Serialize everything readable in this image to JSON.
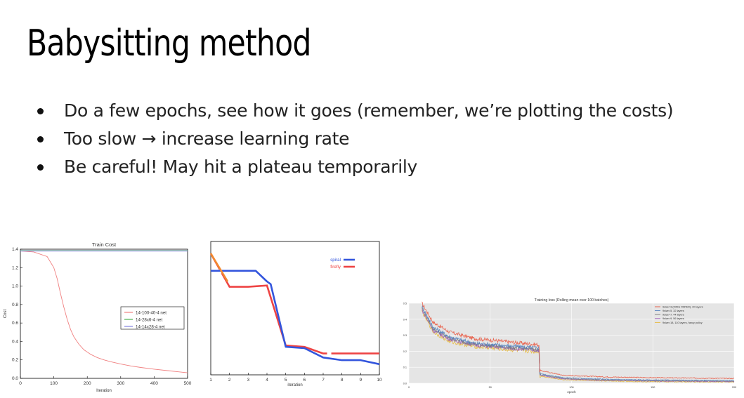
{
  "slide": {
    "title": "Babysitting method",
    "bullets": [
      "Do a few epochs, see how it goes (remember, we’re plotting the costs)",
      "Too slow → increase learning rate",
      "Be careful! May hit a plateau temporarily"
    ]
  },
  "chart_data": [
    {
      "type": "line",
      "title": "Train Cost",
      "xlabel": "Iteration",
      "ylabel": "Cost",
      "xlim": [
        0,
        500
      ],
      "ylim": [
        0,
        1.4
      ],
      "xticks": [
        0,
        100,
        200,
        300,
        400,
        500
      ],
      "yticks": [
        0.0,
        0.2,
        0.4,
        0.6,
        0.8,
        1.0,
        1.2,
        1.4
      ],
      "legend_position": "right",
      "series": [
        {
          "name": "14-100-40-4 net",
          "color": "#f08080",
          "x": [
            0,
            40,
            80,
            100,
            110,
            120,
            130,
            140,
            150,
            160,
            175,
            190,
            210,
            230,
            250,
            270,
            300,
            330,
            360,
            400,
            450,
            500
          ],
          "y": [
            1.38,
            1.37,
            1.32,
            1.2,
            1.08,
            0.92,
            0.77,
            0.64,
            0.53,
            0.45,
            0.37,
            0.31,
            0.26,
            0.225,
            0.2,
            0.18,
            0.155,
            0.135,
            0.118,
            0.1,
            0.08,
            0.06
          ]
        },
        {
          "name": "14-28x6-4 net",
          "color": "#4caf50",
          "x": [
            0,
            500
          ],
          "y": [
            1.385,
            1.385
          ]
        },
        {
          "name": "14-14x28-4 net",
          "color": "#8080e0",
          "x": [
            0,
            500
          ],
          "y": [
            1.38,
            1.38
          ]
        }
      ]
    },
    {
      "type": "line",
      "title": "",
      "xlabel": "iteration",
      "ylabel": "",
      "xlim": [
        1,
        10
      ],
      "ylim": [
        0,
        10
      ],
      "xticks": [
        1,
        2,
        3,
        4,
        5,
        6,
        7,
        8,
        9,
        10
      ],
      "legend_position": "top-right",
      "series": [
        {
          "name": "spiral",
          "color": "#3355dd",
          "x": [
            1,
            2,
            3,
            3.4,
            4,
            4.2,
            5,
            6,
            7,
            8,
            9,
            10
          ],
          "y": [
            7.8,
            7.8,
            7.8,
            7.8,
            7.0,
            6.8,
            2.1,
            2.0,
            1.3,
            1.1,
            1.1,
            0.8
          ]
        },
        {
          "name": "firefly",
          "color": "#ee4444",
          "x": [
            1,
            2,
            3,
            4,
            5,
            6,
            7,
            8,
            9,
            10
          ],
          "y": [
            9.1,
            6.6,
            6.6,
            6.7,
            2.2,
            2.1,
            1.6,
            1.6,
            1.6,
            1.6
          ]
        }
      ]
    },
    {
      "type": "line",
      "title": "Training loss (Rolling mean over 100 batches)",
      "xlabel": "epoch",
      "ylabel": "",
      "xlim": [
        0,
        200
      ],
      "ylim": [
        0,
        0.5
      ],
      "xticks": [
        0,
        50,
        100,
        150,
        200
      ],
      "yticks": [
        0.0,
        0.1,
        0.2,
        0.3,
        0.4,
        0.5
      ],
      "legend_position": "top-right",
      "series": [
        {
          "name": "9size=3 (ORIG PAPER), 20 layers",
          "color": "#e8553e",
          "x": [
            8,
            15,
            25,
            40,
            60,
            80,
            80.5,
            95,
            120,
            150,
            200
          ],
          "y": [
            0.5,
            0.38,
            0.32,
            0.28,
            0.26,
            0.24,
            0.08,
            0.05,
            0.04,
            0.035,
            0.03
          ]
        },
        {
          "name": "9size=5, 32 layers",
          "color": "#4f7fbf",
          "x": [
            8,
            15,
            25,
            40,
            60,
            80,
            80.5,
            95,
            120,
            150,
            200
          ],
          "y": [
            0.48,
            0.35,
            0.29,
            0.25,
            0.235,
            0.22,
            0.06,
            0.035,
            0.025,
            0.02,
            0.016
          ]
        },
        {
          "name": "9size=7, 44 layers",
          "color": "#7a7a7a",
          "x": [
            8,
            15,
            25,
            40,
            60,
            80,
            80.5,
            95,
            120,
            150,
            200
          ],
          "y": [
            0.47,
            0.34,
            0.28,
            0.245,
            0.225,
            0.21,
            0.055,
            0.03,
            0.02,
            0.016,
            0.013
          ]
        },
        {
          "name": "9size=9, 56 layers",
          "color": "#9b59b6",
          "x": [
            8,
            15,
            25,
            40,
            60,
            80,
            80.5,
            95,
            120,
            150,
            200
          ],
          "y": [
            0.46,
            0.33,
            0.275,
            0.24,
            0.22,
            0.205,
            0.05,
            0.027,
            0.018,
            0.014,
            0.011
          ]
        },
        {
          "name": "9size=18, 110 layers, fancy policy",
          "color": "#e6b93f",
          "x": [
            8,
            15,
            25,
            40,
            60,
            80,
            80.5,
            95,
            120,
            150,
            200
          ],
          "y": [
            0.45,
            0.32,
            0.26,
            0.23,
            0.21,
            0.195,
            0.045,
            0.022,
            0.014,
            0.01,
            0.008
          ]
        }
      ]
    }
  ]
}
